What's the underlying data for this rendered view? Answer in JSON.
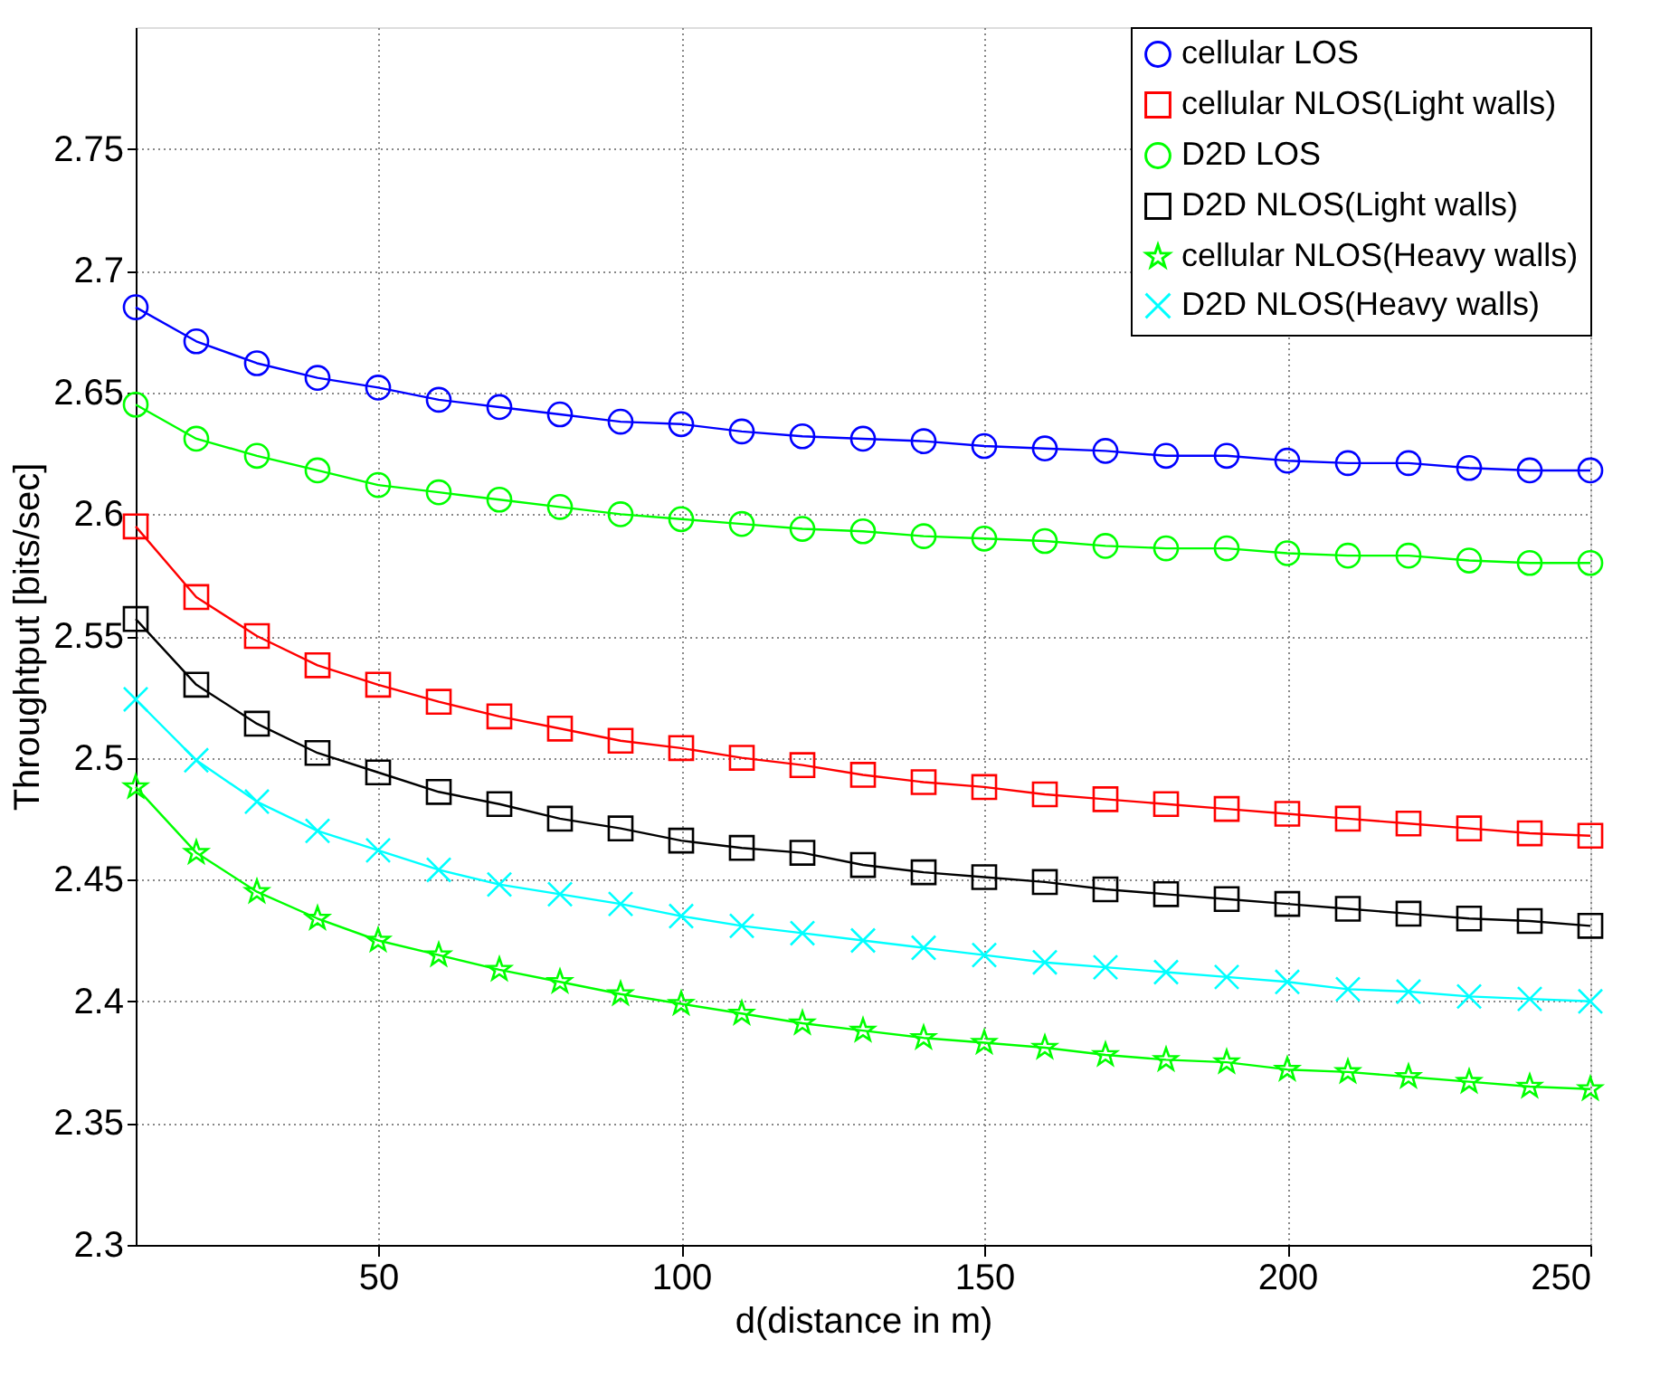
{
  "chart_data": {
    "type": "line",
    "xlabel": "d(distance in m)",
    "ylabel": "Throughtput [bits/sec]",
    "x": [
      10,
      20,
      30,
      40,
      50,
      60,
      70,
      80,
      90,
      100,
      110,
      120,
      130,
      140,
      150,
      160,
      170,
      180,
      190,
      200,
      210,
      220,
      230,
      240,
      250
    ],
    "xlim": [
      10,
      250
    ],
    "xticks": [
      50,
      100,
      150,
      200,
      250
    ],
    "ylim": [
      2.3,
      2.8
    ],
    "yticks": [
      2.3,
      2.35,
      2.4,
      2.45,
      2.5,
      2.55,
      2.6,
      2.65,
      2.7,
      2.75
    ],
    "grid": true,
    "legend": "top right",
    "line_style": "solid",
    "series": [
      {
        "name": "cellular LOS",
        "color": "#0000ff",
        "marker": "circle",
        "values": [
          2.685,
          2.671,
          2.662,
          2.656,
          2.652,
          2.647,
          2.644,
          2.641,
          2.638,
          2.637,
          2.634,
          2.632,
          2.631,
          2.63,
          2.628,
          2.627,
          2.626,
          2.624,
          2.624,
          2.622,
          2.621,
          2.621,
          2.619,
          2.618,
          2.618
        ]
      },
      {
        "name": "cellular NLOS(Light walls)",
        "color": "#ff0000",
        "marker": "square",
        "values": [
          2.595,
          2.566,
          2.55,
          2.538,
          2.53,
          2.523,
          2.517,
          2.512,
          2.507,
          2.504,
          2.5,
          2.497,
          2.493,
          2.49,
          2.488,
          2.485,
          2.483,
          2.481,
          2.479,
          2.477,
          2.475,
          2.473,
          2.471,
          2.469,
          2.468
        ]
      },
      {
        "name": "D2D LOS",
        "color": "#00ff00",
        "marker": "circle",
        "values": [
          2.645,
          2.631,
          2.624,
          2.618,
          2.612,
          2.609,
          2.606,
          2.603,
          2.6,
          2.598,
          2.596,
          2.594,
          2.593,
          2.591,
          2.59,
          2.589,
          2.587,
          2.586,
          2.586,
          2.584,
          2.583,
          2.583,
          2.581,
          2.58,
          2.58
        ]
      },
      {
        "name": "D2D NLOS(Light walls)",
        "color": "#000000",
        "marker": "square",
        "values": [
          2.557,
          2.53,
          2.514,
          2.502,
          2.494,
          2.486,
          2.481,
          2.475,
          2.471,
          2.466,
          2.463,
          2.461,
          2.456,
          2.453,
          2.451,
          2.449,
          2.446,
          2.444,
          2.442,
          2.44,
          2.438,
          2.436,
          2.434,
          2.433,
          2.431
        ]
      },
      {
        "name": "cellular NLOS(Heavy walls)",
        "color": "#00ff00",
        "marker": "star",
        "values": [
          2.488,
          2.461,
          2.445,
          2.434,
          2.425,
          2.419,
          2.413,
          2.408,
          2.403,
          2.399,
          2.395,
          2.391,
          2.388,
          2.385,
          2.383,
          2.381,
          2.378,
          2.376,
          2.375,
          2.372,
          2.371,
          2.369,
          2.367,
          2.365,
          2.364
        ]
      },
      {
        "name": "D2D NLOS(Heavy walls)",
        "color": "#00ffff",
        "marker": "cross",
        "values": [
          2.524,
          2.499,
          2.482,
          2.47,
          2.462,
          2.454,
          2.448,
          2.444,
          2.44,
          2.435,
          2.431,
          2.428,
          2.425,
          2.422,
          2.419,
          2.416,
          2.414,
          2.412,
          2.41,
          2.408,
          2.405,
          2.404,
          2.402,
          2.401,
          2.4
        ]
      }
    ]
  }
}
